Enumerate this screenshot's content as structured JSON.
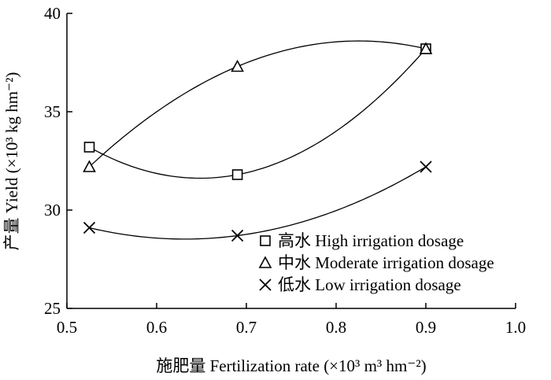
{
  "chart_data": {
    "type": "scatter",
    "xlabel": "施肥量 Fertilization rate (×10³ m³ hm⁻²)",
    "ylabel": "产量 Yield (×10³ kg hm⁻²)",
    "xlim": [
      0.5,
      1.0
    ],
    "ylim": [
      25,
      40
    ],
    "x_ticks": [
      "0.5",
      "0.6",
      "0.7",
      "0.8",
      "0.9",
      "1.0"
    ],
    "y_ticks": [
      "25",
      "30",
      "35",
      "40"
    ],
    "grid": false,
    "legend_position": "bottom-right",
    "series": [
      {
        "name": "高水 High irrigation dosage",
        "marker": "square",
        "x": [
          0.525,
          0.69,
          0.9
        ],
        "values": [
          33.2,
          31.8,
          38.2
        ],
        "fit": "quadratic"
      },
      {
        "name": "中水 Moderate irrigation dosage",
        "marker": "triangle",
        "x": [
          0.525,
          0.69,
          0.9
        ],
        "values": [
          32.2,
          37.3,
          38.2
        ],
        "fit": "quadratic"
      },
      {
        "name": "低水 Low irrigation dosage",
        "marker": "cross",
        "x": [
          0.525,
          0.69,
          0.9
        ],
        "values": [
          29.1,
          28.7,
          32.2
        ],
        "fit": "quadratic"
      }
    ]
  }
}
